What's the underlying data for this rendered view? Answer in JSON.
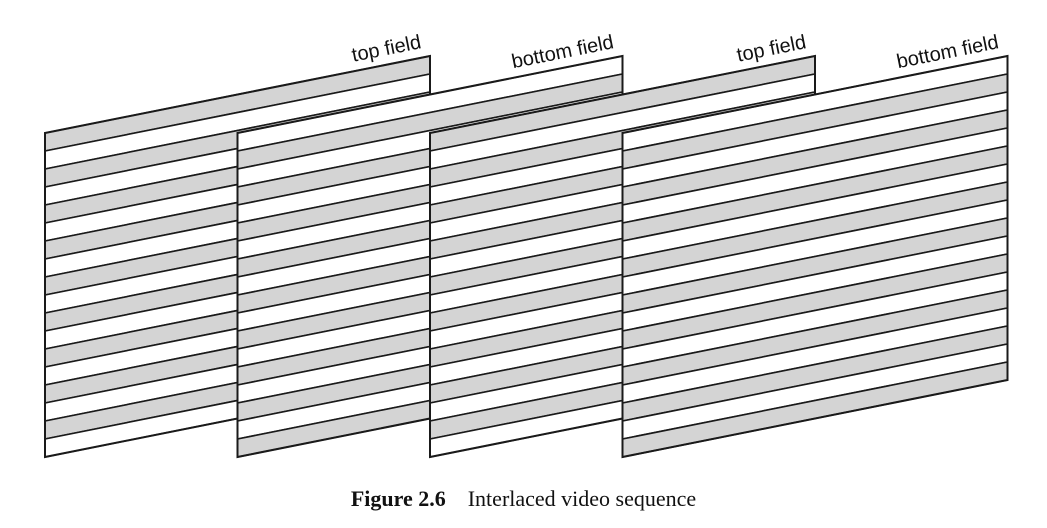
{
  "fields": [
    {
      "label": "top field",
      "parity": "top"
    },
    {
      "label": "bottom field",
      "parity": "bottom"
    },
    {
      "label": "top field",
      "parity": "top"
    },
    {
      "label": "bottom field",
      "parity": "bottom"
    }
  ],
  "colors": {
    "shaded_line": "#d4d4d4",
    "blank_line": "#ffffff",
    "outline": "#1a1a1a"
  },
  "caption": {
    "number": "Figure 2.6",
    "text": "Interlaced video sequence"
  }
}
